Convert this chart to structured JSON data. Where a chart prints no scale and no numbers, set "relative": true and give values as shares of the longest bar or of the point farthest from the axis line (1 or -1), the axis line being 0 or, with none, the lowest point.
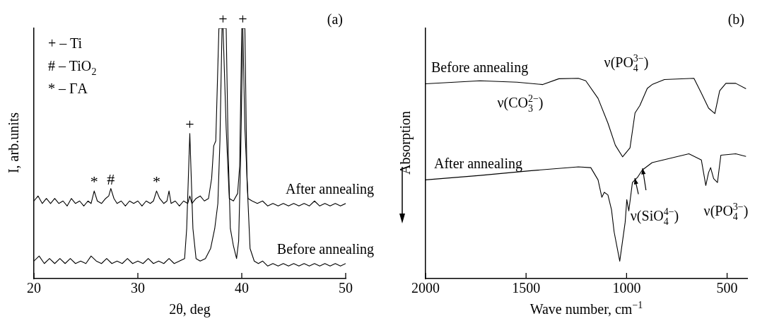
{
  "chart_data": [
    {
      "type": "line",
      "title": "(a)",
      "xlabel": "2θ, deg",
      "ylabel": "I, arb.units",
      "relative": true,
      "xlim": [
        20,
        50
      ],
      "xticks": [
        20,
        30,
        40,
        50
      ],
      "series": [
        {
          "name": "After annealing",
          "color": "#000000",
          "x": [
            20,
            20.4,
            20.8,
            21.2,
            21.6,
            22,
            22.4,
            22.8,
            23.2,
            23.6,
            24,
            24.4,
            24.8,
            25.2,
            25.5,
            25.8,
            26.1,
            26.5,
            26.9,
            27.2,
            27.4,
            27.7,
            28,
            28.4,
            28.8,
            29.2,
            29.6,
            30,
            30.4,
            30.8,
            31.2,
            31.5,
            31.8,
            32.1,
            32.5,
            32.8,
            33,
            33.2,
            33.6,
            34,
            34.4,
            34.8,
            35,
            35.2,
            35.6,
            36,
            36.4,
            36.8,
            37.1,
            37.3,
            37.5,
            37.6,
            37.8,
            38.2,
            38.5,
            38.8,
            39.2,
            39.6,
            39.8,
            40,
            40.1,
            40.3,
            40.6,
            41,
            41.5,
            42,
            42.5,
            43,
            43.5,
            44,
            44.5,
            45,
            45.5,
            46,
            46.5,
            47,
            47.5,
            48,
            48.5,
            49,
            49.5,
            50
          ],
          "values": [
            0.31,
            0.33,
            0.3,
            0.32,
            0.3,
            0.32,
            0.3,
            0.31,
            0.29,
            0.32,
            0.3,
            0.31,
            0.29,
            0.31,
            0.3,
            0.35,
            0.31,
            0.3,
            0.32,
            0.33,
            0.36,
            0.32,
            0.3,
            0.31,
            0.29,
            0.31,
            0.3,
            0.31,
            0.29,
            0.31,
            0.3,
            0.31,
            0.35,
            0.32,
            0.3,
            0.31,
            0.35,
            0.3,
            0.31,
            0.29,
            0.31,
            0.3,
            0.33,
            0.3,
            0.32,
            0.33,
            0.31,
            0.32,
            0.4,
            0.53,
            0.55,
            0.7,
            1,
            1,
            0.6,
            0.32,
            0.31,
            0.34,
            0.45,
            1,
            1,
            0.6,
            0.32,
            0.31,
            0.3,
            0.31,
            0.29,
            0.3,
            0.29,
            0.3,
            0.29,
            0.3,
            0.29,
            0.3,
            0.29,
            0.31,
            0.29,
            0.3,
            0.29,
            0.3,
            0.29,
            0.3
          ]
        },
        {
          "name": "Before annealing",
          "color": "#000000",
          "x": [
            20,
            20.5,
            21,
            21.5,
            22,
            22.5,
            23,
            23.5,
            24,
            24.5,
            25,
            25.5,
            26,
            26.5,
            27,
            27.5,
            28,
            28.5,
            29,
            29.5,
            30,
            30.5,
            31,
            31.5,
            32,
            32.5,
            33,
            33.5,
            34,
            34.5,
            34.7,
            35,
            35.3,
            35.6,
            36,
            36.5,
            37,
            37.4,
            37.7,
            37.9,
            38.1,
            38.5,
            38.7,
            38.9,
            39.2,
            39.5,
            39.7,
            39.9,
            40.1,
            40.3,
            40.5,
            40.8,
            41.2,
            41.6,
            42,
            42.5,
            43,
            43.5,
            44,
            44.5,
            45,
            45.5,
            46,
            46.5,
            47,
            47.5,
            48,
            48.5,
            49,
            49.5,
            50
          ],
          "values": [
            0.07,
            0.09,
            0.06,
            0.08,
            0.06,
            0.08,
            0.06,
            0.08,
            0.06,
            0.07,
            0.06,
            0.09,
            0.07,
            0.06,
            0.08,
            0.06,
            0.07,
            0.06,
            0.08,
            0.06,
            0.07,
            0.06,
            0.08,
            0.06,
            0.07,
            0.06,
            0.08,
            0.06,
            0.07,
            0.08,
            0.2,
            0.58,
            0.2,
            0.08,
            0.07,
            0.08,
            0.12,
            0.2,
            0.3,
            0.55,
            1,
            1,
            0.5,
            0.2,
            0.13,
            0.08,
            0.15,
            0.5,
            1,
            1,
            0.4,
            0.12,
            0.07,
            0.06,
            0.07,
            0.05,
            0.06,
            0.05,
            0.06,
            0.05,
            0.06,
            0.05,
            0.06,
            0.05,
            0.06,
            0.05,
            0.06,
            0.05,
            0.06,
            0.05,
            0.06
          ]
        }
      ],
      "annotations": [
        "+ – Ti",
        "# – TiO$_{2}$",
        "* – ΓA",
        {
          "text": "*",
          "x": 25.8,
          "y": 0.35
        },
        {
          "text": "#",
          "x": 27.4,
          "y": 0.36
        },
        {
          "text": "*",
          "x": 31.8,
          "y": 0.35
        },
        {
          "text": "+",
          "x": 35,
          "y": 0.58
        },
        {
          "text": "+",
          "x": 38.2,
          "y": 1
        },
        {
          "text": "+",
          "x": 40.1,
          "y": 1
        }
      ]
    },
    {
      "type": "line",
      "title": "(b)",
      "xlabel": "Wave number, cm$^{−1}$",
      "ylabel": "Absorption",
      "relative": true,
      "xlim": [
        2000,
        400
      ],
      "xticks": [
        2000,
        1500,
        1000,
        500
      ],
      "series": [
        {
          "name": "Before annealing",
          "color": "#000000",
          "x": [
            2000,
            1729,
            1545,
            1417,
            1337,
            1240,
            1203,
            1142,
            1093,
            1056,
            1020,
            983,
            958,
            934,
            897,
            873,
            812,
            665,
            628,
            592,
            561,
            537,
            506,
            457,
            406
          ],
          "values": [
            0.973,
            0.988,
            0.981,
            0.969,
            0.998,
            1.0,
            0.988,
            0.9,
            0.777,
            0.666,
            0.608,
            0.653,
            0.827,
            0.864,
            0.95,
            0.969,
            0.994,
            1.0,
            0.926,
            0.851,
            0.824,
            0.938,
            0.975,
            0.975,
            0.948
          ]
        },
        {
          "name": "After annealing",
          "color": "#000000",
          "x": [
            2000,
            1729,
            1484,
            1240,
            1178,
            1142,
            1123,
            1111,
            1093,
            1075,
            1062,
            1034,
            1007,
            999,
            989,
            971,
            946,
            922,
            873,
            690,
            628,
            606,
            592,
            582,
            567,
            548,
            531,
            457,
            406
          ],
          "values": [
            0.493,
            0.515,
            0.538,
            0.558,
            0.554,
            0.493,
            0.406,
            0.431,
            0.418,
            0.344,
            0.233,
            0.087,
            0.282,
            0.394,
            0.338,
            0.48,
            0.505,
            0.542,
            0.579,
            0.623,
            0.592,
            0.465,
            0.53,
            0.554,
            0.499,
            0.48,
            0.616,
            0.623,
            0.61
          ]
        }
      ],
      "annotations": [
        "ν(PO$_{4}$$^{3−}$)",
        "ν(CO$_{3}$$^{2−}$)",
        "ν(SiO$_{4}$$^{4−}$)",
        "ν(PO$_{4}$$^{3−}$)"
      ]
    }
  ]
}
